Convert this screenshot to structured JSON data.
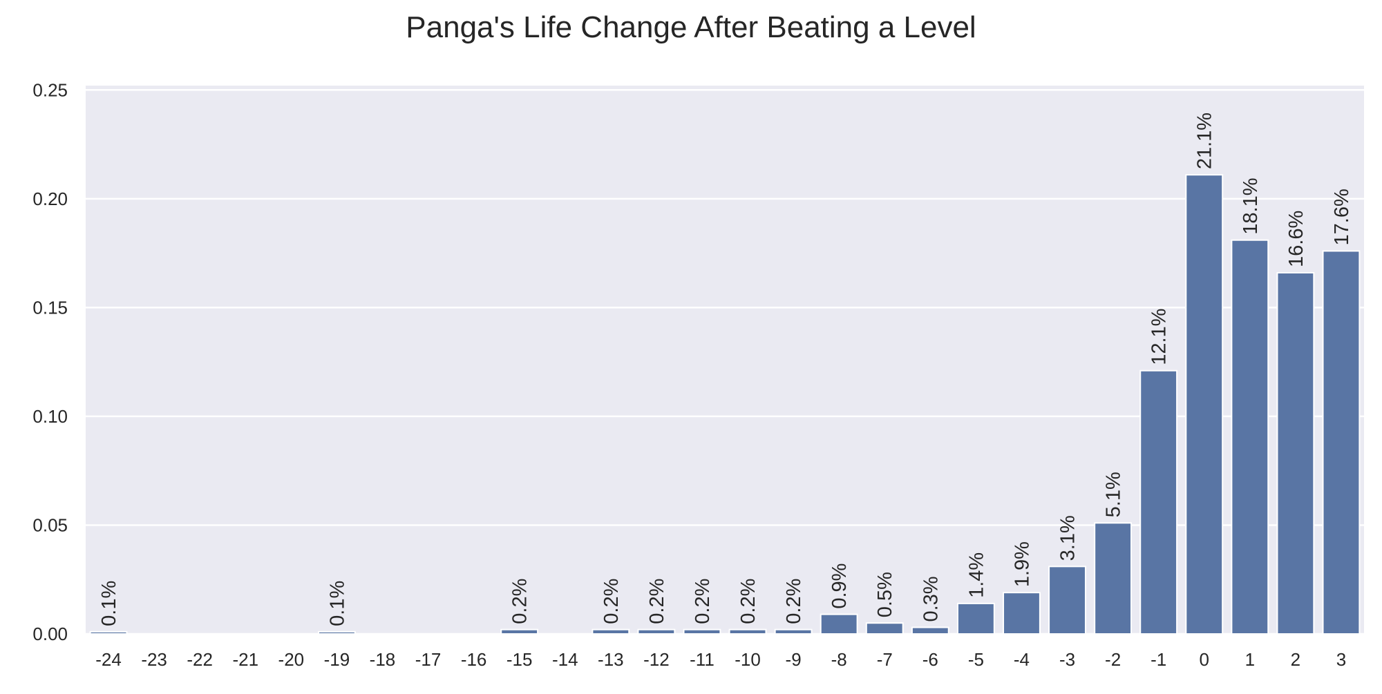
{
  "chart_data": {
    "type": "bar",
    "title": "Panga's Life Change After Beating a Level",
    "xlabel": "",
    "ylabel": "",
    "categories": [
      "-24",
      "-23",
      "-22",
      "-21",
      "-20",
      "-19",
      "-18",
      "-17",
      "-16",
      "-15",
      "-14",
      "-13",
      "-12",
      "-11",
      "-10",
      "-9",
      "-8",
      "-7",
      "-6",
      "-5",
      "-4",
      "-3",
      "-2",
      "-1",
      "0",
      "1",
      "2",
      "3"
    ],
    "values": [
      0.001,
      0,
      0,
      0,
      0,
      0.001,
      0,
      0,
      0,
      0.002,
      0,
      0.002,
      0.002,
      0.002,
      0.002,
      0.002,
      0.009,
      0.005,
      0.003,
      0.014,
      0.019,
      0.031,
      0.051,
      0.121,
      0.211,
      0.181,
      0.166,
      0.176
    ],
    "data_labels": [
      "0.1%",
      "",
      "",
      "",
      "",
      "0.1%",
      "",
      "",
      "",
      "0.2%",
      "",
      "0.2%",
      "0.2%",
      "0.2%",
      "0.2%",
      "0.2%",
      "0.9%",
      "0.5%",
      "0.3%",
      "1.4%",
      "1.9%",
      "3.1%",
      "5.1%",
      "12.1%",
      "21.1%",
      "18.1%",
      "16.6%",
      "17.6%"
    ],
    "yticks": [
      "0.00",
      "0.05",
      "0.10",
      "0.15",
      "0.20",
      "0.25"
    ],
    "ylim": [
      0,
      0.252
    ],
    "grid": true,
    "colors": {
      "bar": "#5975a4",
      "background": "#eaeaf2",
      "grid": "#ffffff",
      "text": "#262626"
    }
  }
}
